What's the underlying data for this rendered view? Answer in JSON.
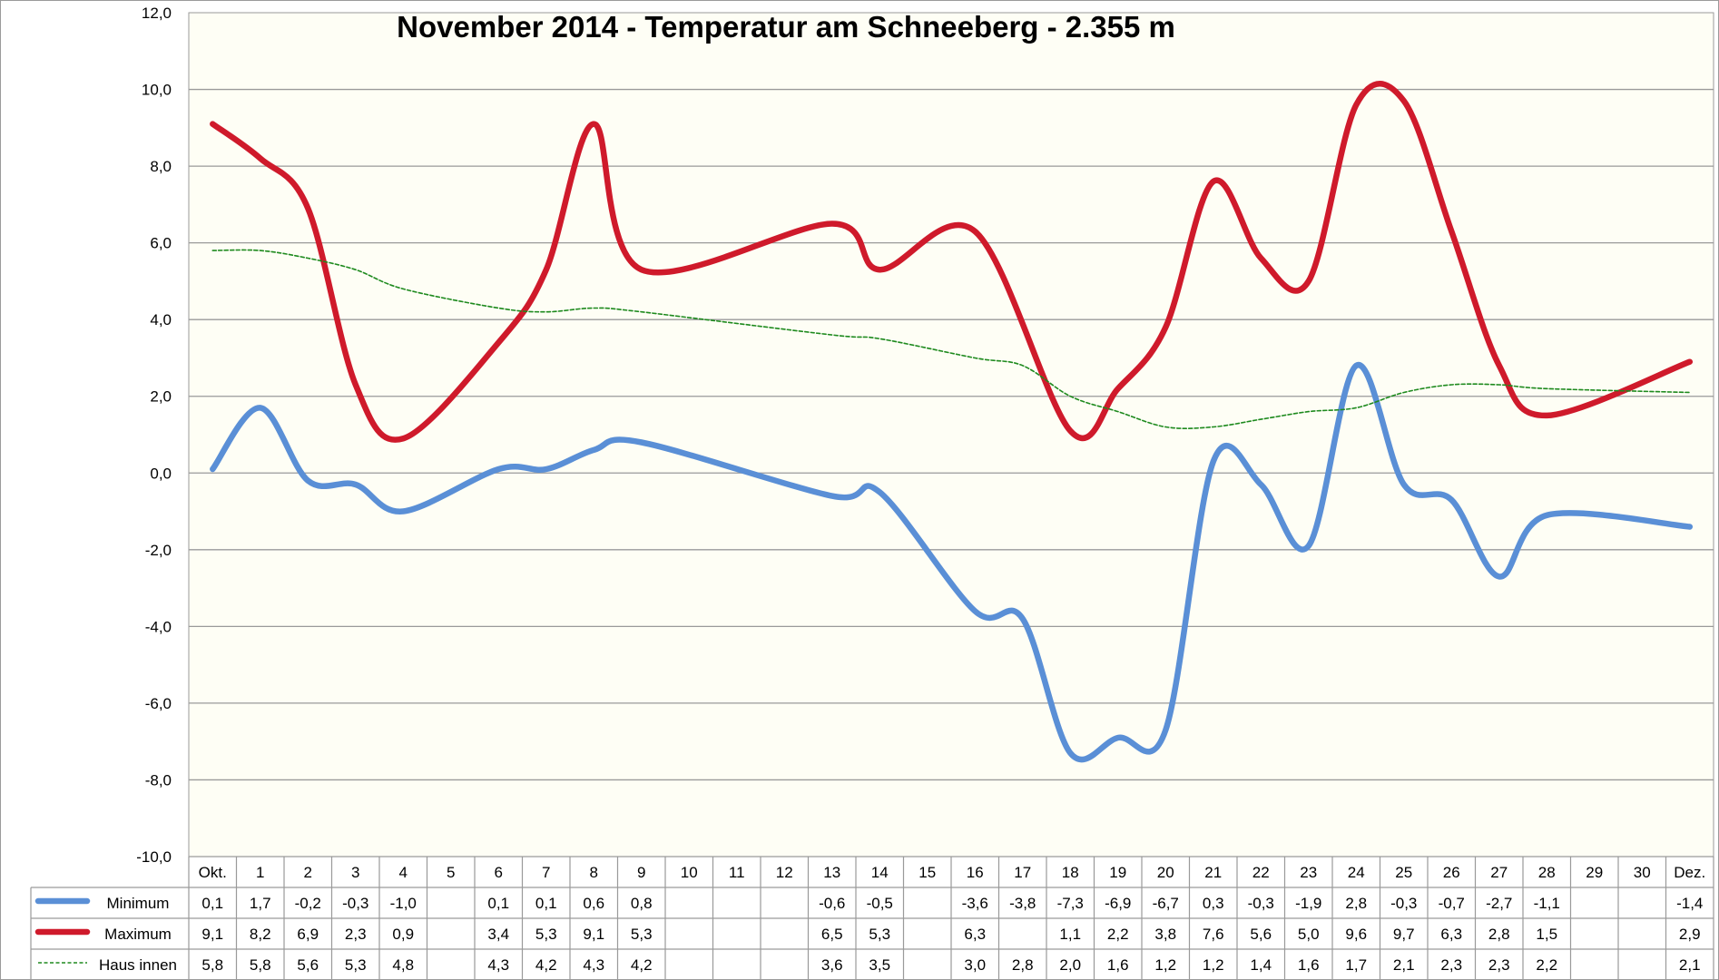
{
  "chart_data": {
    "type": "line",
    "title": "November 2014 - Temperatur am Schneeberg - 2.355 m",
    "ylim": [
      -10,
      12
    ],
    "yticks": [
      "12,0",
      "10,0",
      "8,0",
      "6,0",
      "4,0",
      "2,0",
      "0,0",
      "-2,0",
      "-4,0",
      "-6,0",
      "-8,0",
      "-10,0"
    ],
    "ytick_values": [
      12,
      10,
      8,
      6,
      4,
      2,
      0,
      -2,
      -4,
      -6,
      -8,
      -10
    ],
    "grid": true,
    "legend": "data table below the plot",
    "categories": [
      "Okt.",
      "1",
      "2",
      "3",
      "4",
      "5",
      "6",
      "7",
      "8",
      "9",
      "10",
      "11",
      "12",
      "13",
      "14",
      "15",
      "16",
      "17",
      "18",
      "19",
      "20",
      "21",
      "22",
      "23",
      "24",
      "25",
      "26",
      "27",
      "28",
      "29",
      "30",
      "Dez."
    ],
    "series": [
      {
        "name": "Minimum",
        "color": "#5a8fd6",
        "line": "thick",
        "values": [
          0.1,
          1.7,
          -0.2,
          -0.3,
          -1.0,
          null,
          0.1,
          0.1,
          0.6,
          0.8,
          null,
          null,
          null,
          -0.6,
          -0.5,
          null,
          -3.6,
          -3.8,
          -7.3,
          -6.9,
          -6.7,
          0.3,
          -0.3,
          -1.9,
          2.8,
          -0.3,
          -0.7,
          -2.7,
          -1.1,
          null,
          null,
          -1.4
        ],
        "labels": [
          "0,1",
          "1,7",
          "-0,2",
          "-0,3",
          "-1,0",
          "",
          "0,1",
          "0,1",
          "0,6",
          "0,8",
          "",
          "",
          "",
          "-0,6",
          "-0,5",
          "",
          "-3,6",
          "-3,8",
          "-7,3",
          "-6,9",
          "-6,7",
          "0,3",
          "-0,3",
          "-1,9",
          "2,8",
          "-0,3",
          "-0,7",
          "-2,7",
          "-1,1",
          "",
          "",
          "-1,4"
        ]
      },
      {
        "name": "Maximum",
        "color": "#cf1a2b",
        "line": "thick",
        "values": [
          9.1,
          8.2,
          6.9,
          2.3,
          0.9,
          null,
          3.4,
          5.3,
          9.1,
          5.3,
          null,
          null,
          null,
          6.5,
          5.3,
          null,
          6.3,
          null,
          1.1,
          2.2,
          3.8,
          7.6,
          5.6,
          5.0,
          9.6,
          9.7,
          6.3,
          2.8,
          1.5,
          null,
          null,
          2.9
        ],
        "labels": [
          "9,1",
          "8,2",
          "6,9",
          "2,3",
          "0,9",
          "",
          "3,4",
          "5,3",
          "9,1",
          "5,3",
          "",
          "",
          "",
          "6,5",
          "5,3",
          "",
          "6,3",
          "",
          "1,1",
          "2,2",
          "3,8",
          "7,6",
          "5,6",
          "5,0",
          "9,6",
          "9,7",
          "6,3",
          "2,8",
          "1,5",
          "",
          "",
          "2,9"
        ]
      },
      {
        "name": "Haus innen",
        "color": "#1e8a1e",
        "line": "dashed",
        "values": [
          5.8,
          5.8,
          5.6,
          5.3,
          4.8,
          null,
          4.3,
          4.2,
          4.3,
          4.2,
          null,
          null,
          null,
          3.6,
          3.5,
          null,
          3.0,
          2.8,
          2.0,
          1.6,
          1.2,
          1.2,
          1.4,
          1.6,
          1.7,
          2.1,
          2.3,
          2.3,
          2.2,
          null,
          null,
          2.1
        ],
        "labels": [
          "5,8",
          "5,8",
          "5,6",
          "5,3",
          "4,8",
          "",
          "4,3",
          "4,2",
          "4,3",
          "4,2",
          "",
          "",
          "",
          "3,6",
          "3,5",
          "",
          "3,0",
          "2,8",
          "2,0",
          "1,6",
          "1,2",
          "1,2",
          "1,4",
          "1,6",
          "1,7",
          "2,1",
          "2,3",
          "2,3",
          "2,2",
          "",
          "",
          "2,1"
        ]
      }
    ]
  }
}
